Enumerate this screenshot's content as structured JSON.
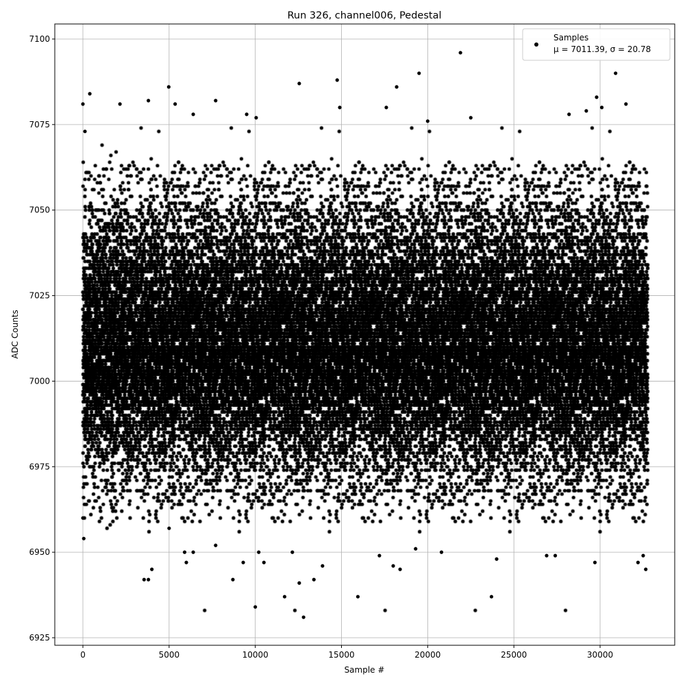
{
  "chart_data": {
    "type": "scatter",
    "title": "Run 326, channel006, Pedestal",
    "xlabel": "Sample #",
    "ylabel": "ADC Counts",
    "xlim": [
      -1630,
      34330
    ],
    "ylim": [
      6922.8,
      7104.4
    ],
    "xticks": [
      0,
      5000,
      10000,
      15000,
      20000,
      25000,
      30000
    ],
    "yticks": [
      6925,
      6950,
      6975,
      7000,
      7025,
      7050,
      7075,
      7100
    ],
    "grid": true,
    "marker_color": "#000000",
    "legend": {
      "placement": "top-right",
      "entries": [
        "Samples"
      ],
      "stats_text": "μ = 7011.39, σ = 20.78"
    },
    "series": [
      {
        "name": "Samples",
        "n_samples": 32768,
        "x_range": [
          0,
          32767
        ],
        "mean": 7011.39,
        "std": 20.78,
        "outliers": [
          [
            0,
            7081
          ],
          [
            120,
            7073
          ],
          [
            400,
            7084
          ],
          [
            2150,
            7081
          ],
          [
            3800,
            7082
          ],
          [
            4980,
            7086
          ],
          [
            5350,
            7081
          ],
          [
            6400,
            7078
          ],
          [
            7700,
            7082
          ],
          [
            9500,
            7078
          ],
          [
            10050,
            7077
          ],
          [
            12550,
            7087
          ],
          [
            14750,
            7088
          ],
          [
            14900,
            7080
          ],
          [
            17600,
            7080
          ],
          [
            18200,
            7086
          ],
          [
            19500,
            7090
          ],
          [
            20000,
            7076
          ],
          [
            21900,
            7096
          ],
          [
            22500,
            7077
          ],
          [
            28200,
            7078
          ],
          [
            29200,
            7079
          ],
          [
            29800,
            7083
          ],
          [
            30100,
            7080
          ],
          [
            30900,
            7090
          ],
          [
            31500,
            7081
          ],
          [
            0,
            6960
          ],
          [
            50,
            6954
          ],
          [
            3550,
            6942
          ],
          [
            3800,
            6942
          ],
          [
            4000,
            6945
          ],
          [
            5000,
            6957
          ],
          [
            5900,
            6950
          ],
          [
            6000,
            6947
          ],
          [
            6400,
            6950
          ],
          [
            7700,
            6952
          ],
          [
            8700,
            6942
          ],
          [
            9300,
            6947
          ],
          [
            10000,
            6934
          ],
          [
            10200,
            6950
          ],
          [
            10500,
            6947
          ],
          [
            11700,
            6937
          ],
          [
            12150,
            6950
          ],
          [
            12550,
            6941
          ],
          [
            12800,
            6931
          ],
          [
            13400,
            6942
          ],
          [
            13900,
            6946
          ],
          [
            15950,
            6937
          ],
          [
            17200,
            6949
          ],
          [
            18000,
            6946
          ],
          [
            18400,
            6945
          ],
          [
            19300,
            6951
          ],
          [
            20800,
            6950
          ],
          [
            23700,
            6937
          ],
          [
            24000,
            6948
          ],
          [
            26900,
            6949
          ],
          [
            27400,
            6949
          ],
          [
            29700,
            6947
          ],
          [
            32200,
            6947
          ],
          [
            32500,
            6949
          ],
          [
            32650,
            6945
          ]
        ]
      }
    ]
  }
}
